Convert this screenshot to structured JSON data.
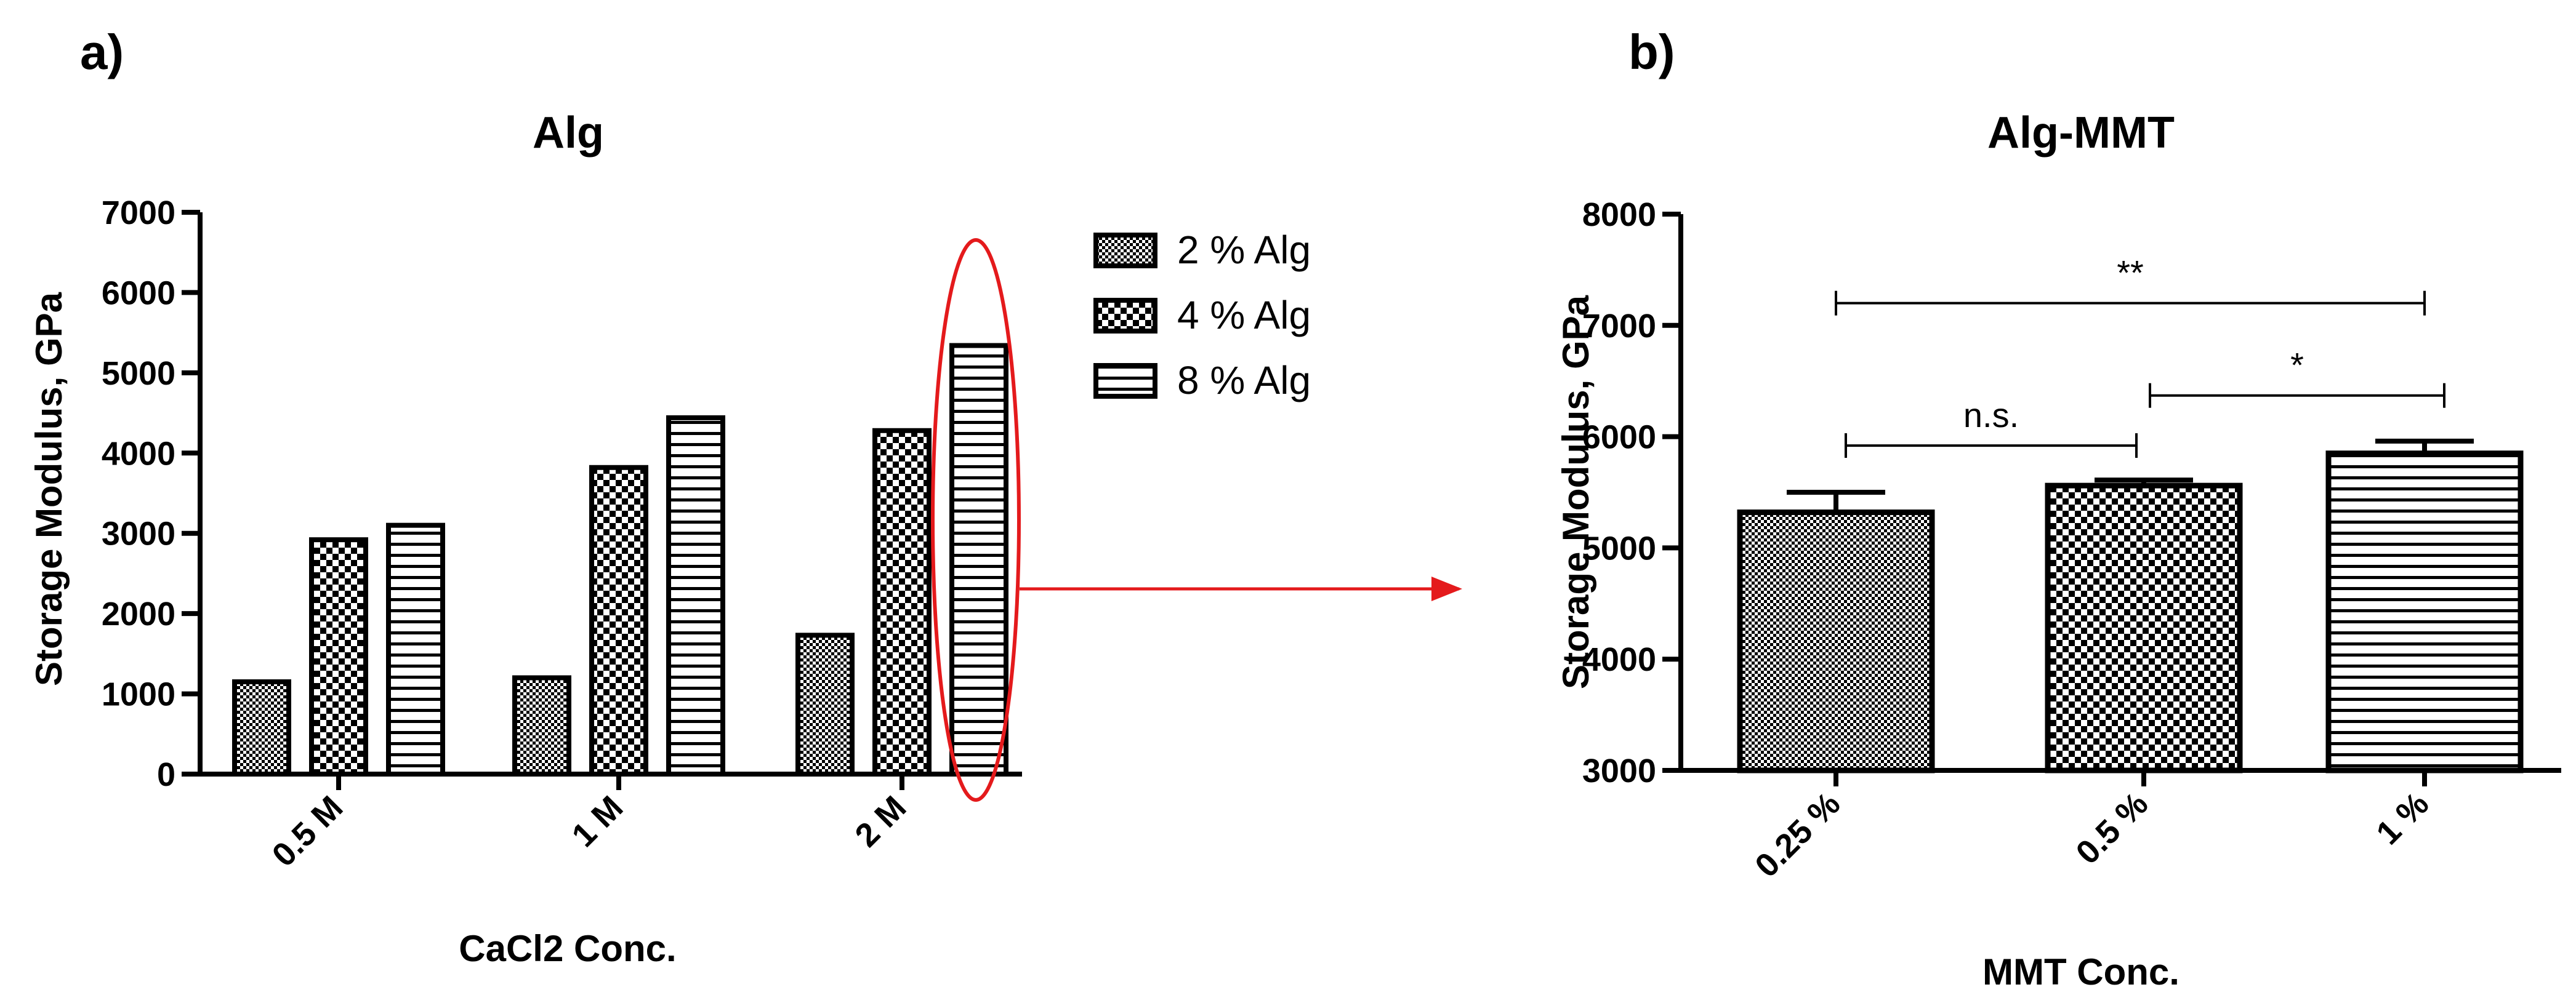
{
  "chart_data": [
    {
      "panel_label": "a)",
      "type": "bar",
      "title": "Alg",
      "xlabel": "CaCl2 Conc.",
      "ylabel": "Storage Modulus, GPa",
      "ylim": [
        0,
        7000
      ],
      "yticks": [
        "0",
        "1000",
        "2000",
        "3000",
        "4000",
        "5000",
        "6000",
        "7000"
      ],
      "categories": [
        "0.5 M",
        "1 M",
        "2 M"
      ],
      "series": [
        {
          "name": "2 % Alg",
          "pattern": "fine-checker",
          "values": [
            1150,
            1200,
            1730
          ]
        },
        {
          "name": "4 % Alg",
          "pattern": "checker",
          "values": [
            2920,
            3820,
            4280
          ]
        },
        {
          "name": "8 % Alg",
          "pattern": "horizontal-lines",
          "values": [
            3100,
            4440,
            5340
          ]
        }
      ],
      "legend_position": "top-right",
      "highlight": {
        "category": "2 M",
        "series": "8 % Alg",
        "color": "#e41a1c"
      }
    },
    {
      "panel_label": "b)",
      "type": "bar",
      "title": "Alg-MMT",
      "xlabel": "MMT Conc.",
      "ylabel": "Storage Modulus, GPa",
      "ylim": [
        3000,
        8000
      ],
      "yticks": [
        "3000",
        "4000",
        "5000",
        "6000",
        "7000",
        "8000"
      ],
      "categories": [
        "0.25 %",
        "0.5 %",
        "1 %"
      ],
      "patterns": [
        "fine-checker",
        "checker",
        "horizontal-lines"
      ],
      "values": [
        5320,
        5560,
        5850
      ],
      "errors": [
        180,
        50,
        110
      ],
      "significance": [
        {
          "from": 0,
          "to": 2,
          "label": "**",
          "y": 7200
        },
        {
          "from": 0,
          "to": 1,
          "label": "n.s.",
          "y": 5920
        },
        {
          "from": 1,
          "to": 2,
          "label": "*",
          "y": 6370
        }
      ]
    }
  ],
  "arrow_color": "#e41a1c"
}
